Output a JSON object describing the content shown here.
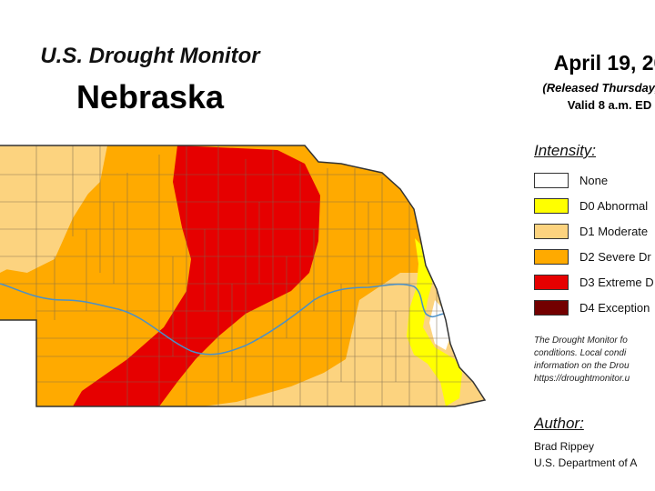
{
  "header": {
    "product": "U.S. Drought Monitor",
    "state": "Nebraska",
    "date": "April 19, 20",
    "released": "(Released Thursday, Ap",
    "valid": "Valid 8 a.m. ED"
  },
  "legend": {
    "title": "Intensity:",
    "items": [
      {
        "label": "None",
        "color": "#ffffff"
      },
      {
        "label": "D0 Abnormal",
        "color": "#ffff00"
      },
      {
        "label": "D1 Moderate",
        "color": "#fcd37f"
      },
      {
        "label": "D2 Severe Dr",
        "color": "#ffaa00"
      },
      {
        "label": "D3 Extreme D",
        "color": "#e60000"
      },
      {
        "label": "D4 Exception",
        "color": "#730000"
      }
    ]
  },
  "note": {
    "lines": [
      "The Drought Monitor fo",
      "conditions. Local condi",
      "information on the Drou",
      "https://droughtmonitor.u"
    ]
  },
  "author": {
    "title": "Author:",
    "name": "Brad Rippey",
    "org": "U.S. Department of A"
  },
  "map": {
    "colors": {
      "d0": "#ffff00",
      "d1": "#fcd37f",
      "d2": "#ffaa00",
      "d3": "#e60000",
      "river": "#4a90c8",
      "county_line": "#7a6a50",
      "outline": "#333333"
    }
  }
}
